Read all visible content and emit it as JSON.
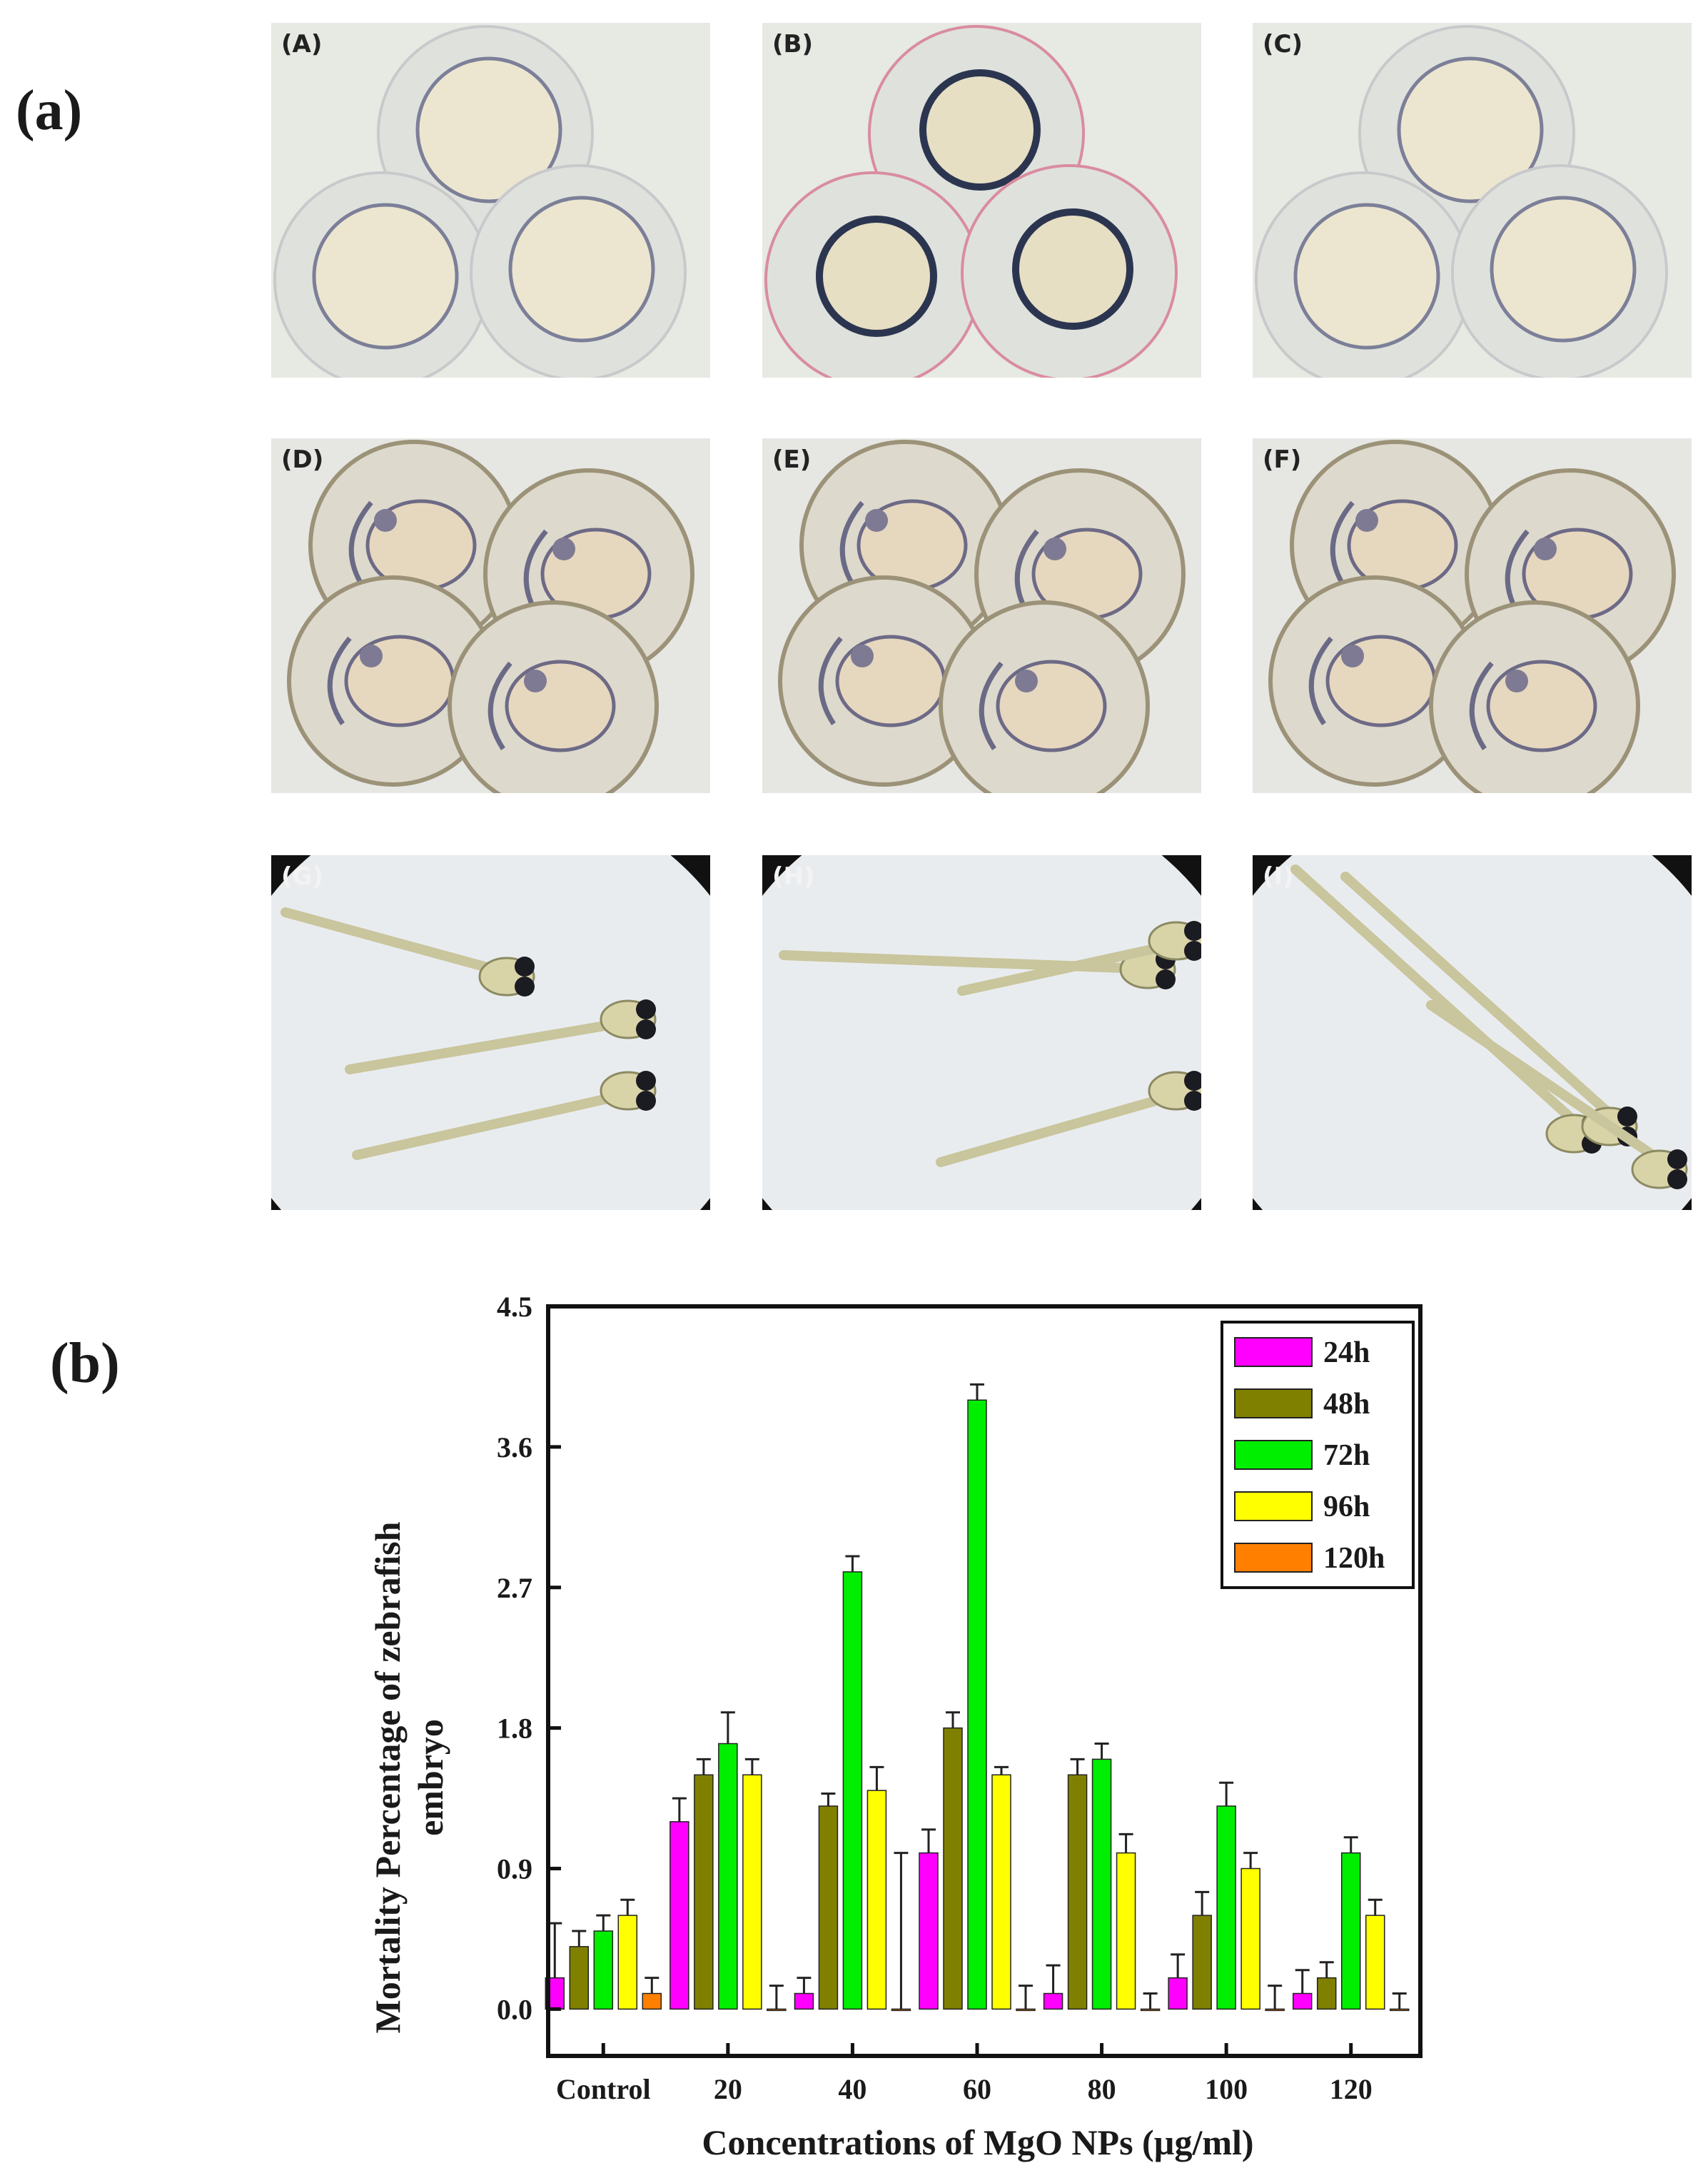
{
  "panel_a": {
    "label": "(a)",
    "photos": [
      {
        "id": "A",
        "label": "(A)",
        "type": "egg"
      },
      {
        "id": "B",
        "label": "(B)",
        "type": "egg-dark"
      },
      {
        "id": "C",
        "label": "(C)",
        "type": "egg"
      },
      {
        "id": "D",
        "label": "(D)",
        "type": "embryo"
      },
      {
        "id": "E",
        "label": "(E)",
        "type": "embryo"
      },
      {
        "id": "F",
        "label": "(F)",
        "type": "embryo"
      },
      {
        "id": "G",
        "label": "(G)",
        "type": "larva"
      },
      {
        "id": "H",
        "label": "(H)",
        "type": "larva"
      },
      {
        "id": "I",
        "label": "(I)",
        "type": "larva"
      }
    ]
  },
  "panel_b": {
    "label": "(b)"
  },
  "chart_data": {
    "type": "bar",
    "xlabel": "Concentrations  of MgO NPs (µg/ml)",
    "ylabel_line1": "Mortality Percentage of zebrafish",
    "ylabel_line2": "embryo",
    "categories": [
      "Control",
      "20",
      "40",
      "60",
      "80",
      "100",
      "120"
    ],
    "ylim": [
      -0.3,
      4.5
    ],
    "yticks": [
      "0.0",
      "0.9",
      "1.8",
      "2.7",
      "3.6",
      "4.5"
    ],
    "ytick_values": [
      0.0,
      0.9,
      1.8,
      2.7,
      3.6,
      4.5
    ],
    "legend_position": "top-right",
    "series": [
      {
        "name": "24h",
        "color": "#ff00ff",
        "values": [
          0.2,
          1.2,
          0.1,
          1.0,
          0.1,
          0.2,
          0.1
        ],
        "errors": [
          0.35,
          0.15,
          0.1,
          0.15,
          0.18,
          0.15,
          0.15
        ]
      },
      {
        "name": "48h",
        "color": "#808000",
        "values": [
          0.4,
          1.5,
          1.3,
          1.8,
          1.5,
          0.6,
          0.2
        ],
        "errors": [
          0.1,
          0.1,
          0.08,
          0.1,
          0.1,
          0.15,
          0.1
        ]
      },
      {
        "name": "72h",
        "color": "#00ee00",
        "values": [
          0.5,
          1.7,
          2.8,
          3.9,
          1.6,
          1.3,
          1.0
        ],
        "errors": [
          0.1,
          0.2,
          0.1,
          0.1,
          0.1,
          0.15,
          0.1
        ]
      },
      {
        "name": "96h",
        "color": "#ffff00",
        "values": [
          0.6,
          1.5,
          1.4,
          1.5,
          1.0,
          0.9,
          0.6
        ],
        "errors": [
          0.1,
          0.1,
          0.15,
          0.05,
          0.12,
          0.1,
          0.1
        ]
      },
      {
        "name": "120h",
        "color": "#ff8000",
        "values": [
          0.1,
          0.0,
          0.0,
          0.0,
          0.0,
          0.0,
          0.0
        ],
        "errors": [
          0.1,
          0.15,
          1.0,
          0.15,
          0.1,
          0.15,
          0.1
        ]
      }
    ]
  }
}
